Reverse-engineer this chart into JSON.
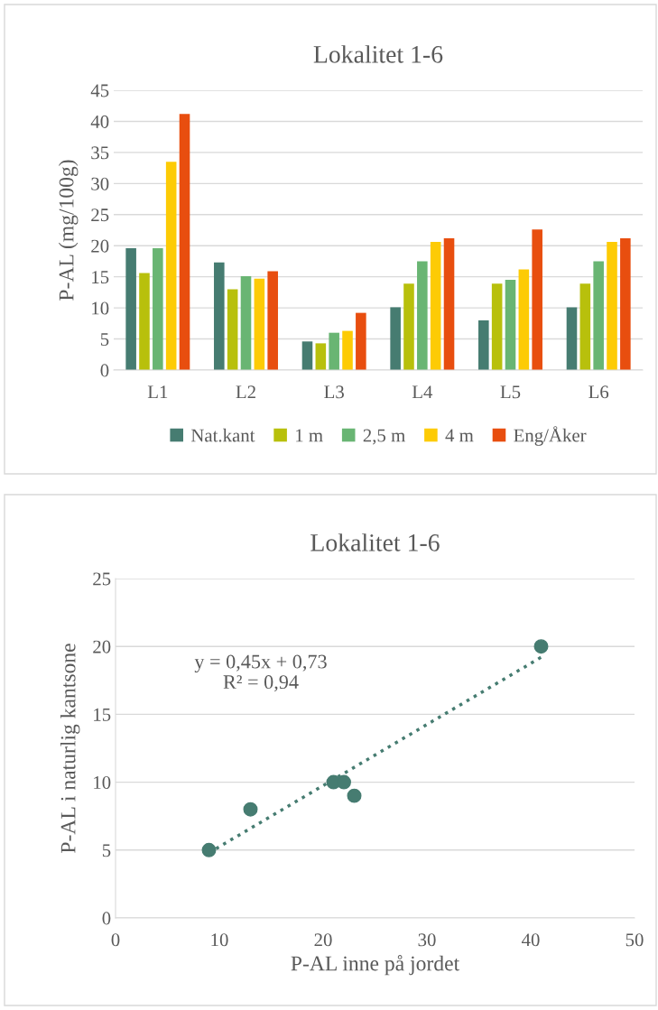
{
  "chart_data": [
    {
      "type": "bar",
      "title": "Lokalitet 1-6",
      "ylabel": "P-AL (mg/100g)",
      "categories": [
        "L1",
        "L2",
        "L3",
        "L4",
        "L5",
        "L6"
      ],
      "ylim": [
        0,
        45
      ],
      "yticks": [
        0,
        5,
        10,
        15,
        20,
        25,
        30,
        35,
        40,
        45
      ],
      "grid": "y",
      "legend": "bottom",
      "series": [
        {
          "name": "Nat.kant",
          "color": "#467c71",
          "values": [
            19.6,
            17.3,
            4.6,
            10.1,
            8.0,
            10.1
          ]
        },
        {
          "name": "1 m",
          "color": "#b8c00c",
          "values": [
            15.6,
            13.0,
            4.3,
            13.9,
            13.9,
            13.9
          ]
        },
        {
          "name": "2,5 m",
          "color": "#69b573",
          "values": [
            19.6,
            15.1,
            6.0,
            17.5,
            14.5,
            17.5
          ]
        },
        {
          "name": "4 m",
          "color": "#fdcb05",
          "values": [
            33.5,
            14.7,
            6.3,
            20.6,
            16.2,
            20.6
          ]
        },
        {
          "name": "Eng/Åker",
          "color": "#e84e0f",
          "values": [
            41.2,
            15.9,
            9.2,
            21.2,
            22.6,
            21.2
          ]
        }
      ]
    },
    {
      "type": "scatter",
      "title": "Lokalitet 1-6",
      "xlabel": "P-AL inne på jordet",
      "ylabel": "P-AL i naturlig kantsone",
      "xlim": [
        0,
        50
      ],
      "xticks": [
        0,
        10,
        20,
        30,
        40,
        50
      ],
      "ylim": [
        0,
        25
      ],
      "yticks": [
        0,
        5,
        10,
        15,
        20,
        25
      ],
      "grid": "y",
      "annotations": [
        "y = 0,45x + 0,73\nR² = 0,94"
      ],
      "series": [
        {
          "type": "scatter",
          "color": "#467c71",
          "marker": "circle",
          "x": [
            9,
            13,
            21,
            22,
            23,
            41
          ],
          "values": [
            5,
            8,
            10,
            10,
            9,
            20
          ]
        },
        {
          "type": "line",
          "color": "#467c71",
          "marker": "none",
          "line_style": "dotted",
          "x": [
            9,
            41
          ],
          "values": [
            4.8,
            19.2
          ]
        }
      ]
    }
  ]
}
